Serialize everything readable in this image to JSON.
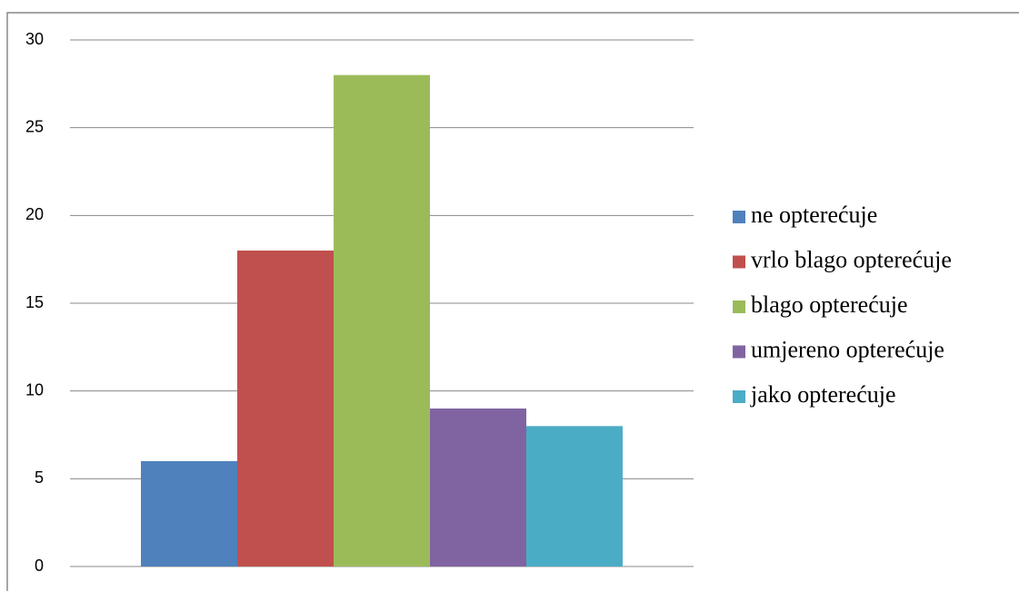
{
  "chart_data": {
    "type": "bar",
    "categories": [
      null
    ],
    "series": [
      {
        "name": "ne opterećuje",
        "color": "#4f81bd",
        "values": [
          6
        ]
      },
      {
        "name": "vrlo blago opterećuje",
        "color": "#c0504d",
        "values": [
          18
        ]
      },
      {
        "name": "blago opterećuje",
        "color": "#9bbb59",
        "values": [
          28
        ]
      },
      {
        "name": "umjereno opterećuje",
        "color": "#8064a2",
        "values": [
          9
        ]
      },
      {
        "name": "jako opterećuje",
        "color": "#4bacc6",
        "values": [
          8
        ]
      }
    ],
    "ylim": [
      0,
      30
    ],
    "yticks": [
      0,
      5,
      10,
      15,
      20,
      25,
      30
    ],
    "grid": true,
    "legend": "right"
  }
}
